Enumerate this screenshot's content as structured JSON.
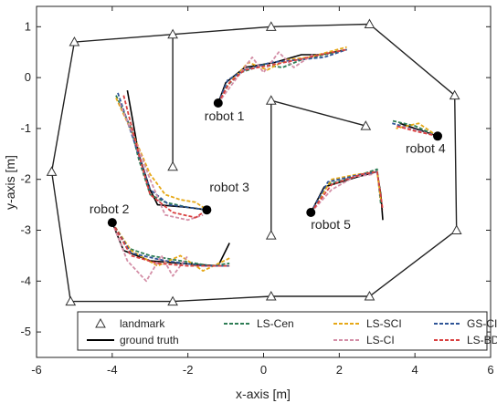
{
  "chart_data": {
    "type": "line",
    "title": "",
    "xlabel": "x-axis [m]",
    "ylabel": "y-axis [m]",
    "xlim": [
      -6,
      6
    ],
    "ylim": [
      -5.5,
      1.4
    ],
    "xticks": [
      -6,
      -4,
      -2,
      0,
      2,
      4,
      6
    ],
    "yticks": [
      1,
      0,
      -1,
      -2,
      -3,
      -4,
      -5
    ],
    "xtick_labels": [
      "-6",
      "-4",
      "-2",
      "0",
      "2",
      "4",
      "6"
    ],
    "ytick_labels": [
      "1",
      "0",
      "-1",
      "-2",
      "-3",
      "-4",
      "-5"
    ],
    "grid": false,
    "legend_position": "bottom-center",
    "landmarks": {
      "name": "landmark",
      "color": "#333333",
      "boundary": [
        [
          -5.1,
          -4.4
        ],
        [
          -2.4,
          -4.4
        ],
        [
          0.2,
          -4.3
        ],
        [
          2.8,
          -4.3
        ],
        [
          5.1,
          -3.0
        ],
        [
          5.05,
          -0.35
        ],
        [
          2.8,
          1.05
        ],
        [
          0.2,
          1.0
        ],
        [
          -2.4,
          0.85
        ],
        [
          -5.0,
          0.7
        ],
        [
          -5.6,
          -1.85
        ],
        [
          -5.1,
          -4.4
        ]
      ],
      "segments": [
        [
          [
            -2.4,
            0.85
          ],
          [
            -2.4,
            -1.75
          ]
        ],
        [
          [
            0.2,
            -0.45
          ],
          [
            0.2,
            -3.1
          ]
        ],
        [
          [
            0.2,
            -0.45
          ],
          [
            2.7,
            -0.95
          ]
        ]
      ]
    },
    "robots": [
      {
        "label": "robot 1",
        "end": [
          -1.2,
          -0.5
        ]
      },
      {
        "label": "robot 2",
        "end": [
          -4.0,
          -2.85
        ]
      },
      {
        "label": "robot 3",
        "end": [
          -1.5,
          -2.6
        ]
      },
      {
        "label": "robot 4",
        "end": [
          4.6,
          -1.15
        ]
      },
      {
        "label": "robot 5",
        "end": [
          1.25,
          -2.65
        ]
      }
    ],
    "series": [
      {
        "name": "ground truth",
        "color": "#000000",
        "dash": "solid",
        "paths": [
          [
            [
              -1.2,
              -0.5
            ],
            [
              -1.0,
              -0.1
            ],
            [
              -0.5,
              0.2
            ],
            [
              0.3,
              0.3
            ],
            [
              1.0,
              0.45
            ],
            [
              1.5,
              0.45
            ],
            [
              2.2,
              0.55
            ]
          ],
          [
            [
              -3.6,
              -0.25
            ],
            [
              -3.3,
              -1.5
            ],
            [
              -3.0,
              -2.2
            ],
            [
              -2.8,
              -2.5
            ],
            [
              -2.0,
              -2.55
            ],
            [
              -1.5,
              -2.6
            ]
          ],
          [
            [
              -4.0,
              -2.85
            ],
            [
              -3.7,
              -3.4
            ],
            [
              -3.0,
              -3.6
            ],
            [
              -2.2,
              -3.65
            ],
            [
              -1.2,
              -3.7
            ],
            [
              -0.9,
              -3.25
            ]
          ],
          [
            [
              1.25,
              -2.65
            ],
            [
              1.6,
              -2.15
            ],
            [
              2.5,
              -1.95
            ],
            [
              3.0,
              -1.85
            ],
            [
              3.1,
              -2.3
            ],
            [
              3.15,
              -2.8
            ]
          ],
          [
            [
              4.6,
              -1.15
            ],
            [
              4.0,
              -1.0
            ],
            [
              3.6,
              -0.9
            ]
          ]
        ]
      },
      {
        "name": "LS-Cen",
        "color": "#2e7d55",
        "dash": "dashed",
        "paths": [
          [
            [
              -1.2,
              -0.5
            ],
            [
              -0.95,
              -0.15
            ],
            [
              -0.6,
              0.1
            ],
            [
              0.0,
              0.25
            ],
            [
              0.5,
              0.2
            ],
            [
              1.0,
              0.35
            ],
            [
              1.6,
              0.45
            ],
            [
              2.2,
              0.55
            ]
          ],
          [
            [
              -3.9,
              -0.35
            ],
            [
              -3.5,
              -1.0
            ],
            [
              -3.3,
              -1.6
            ],
            [
              -3.0,
              -2.3
            ],
            [
              -2.6,
              -2.45
            ],
            [
              -2.0,
              -2.55
            ],
            [
              -1.5,
              -2.6
            ]
          ],
          [
            [
              -4.0,
              -2.85
            ],
            [
              -3.6,
              -3.35
            ],
            [
              -3.0,
              -3.5
            ],
            [
              -2.2,
              -3.6
            ],
            [
              -1.4,
              -3.7
            ],
            [
              -0.9,
              -3.65
            ]
          ],
          [
            [
              1.25,
              -2.65
            ],
            [
              1.7,
              -2.1
            ],
            [
              2.4,
              -1.95
            ],
            [
              3.0,
              -1.8
            ],
            [
              3.1,
              -2.5
            ]
          ],
          [
            [
              4.6,
              -1.15
            ],
            [
              4.0,
              -0.95
            ],
            [
              3.4,
              -0.85
            ]
          ]
        ]
      },
      {
        "name": "LS-SCI",
        "color": "#e6a817",
        "dash": "dashed",
        "paths": [
          [
            [
              -1.2,
              -0.5
            ],
            [
              -0.9,
              -0.1
            ],
            [
              -0.4,
              0.3
            ],
            [
              0.1,
              0.15
            ],
            [
              0.6,
              0.35
            ],
            [
              1.2,
              0.4
            ],
            [
              2.2,
              0.6
            ]
          ],
          [
            [
              -3.9,
              -0.4
            ],
            [
              -3.4,
              -1.2
            ],
            [
              -3.0,
              -1.9
            ],
            [
              -2.6,
              -2.3
            ],
            [
              -2.2,
              -2.4
            ],
            [
              -1.8,
              -2.45
            ],
            [
              -1.5,
              -2.6
            ]
          ],
          [
            [
              -4.0,
              -2.85
            ],
            [
              -3.5,
              -3.4
            ],
            [
              -2.8,
              -3.7
            ],
            [
              -2.2,
              -3.5
            ],
            [
              -1.6,
              -3.8
            ],
            [
              -0.9,
              -3.55
            ]
          ],
          [
            [
              1.25,
              -2.65
            ],
            [
              1.8,
              -2.0
            ],
            [
              2.5,
              -1.9
            ],
            [
              3.0,
              -1.85
            ],
            [
              3.1,
              -2.4
            ]
          ],
          [
            [
              4.6,
              -1.15
            ],
            [
              4.1,
              -0.9
            ],
            [
              3.5,
              -1.0
            ]
          ]
        ]
      },
      {
        "name": "GS-CI",
        "color": "#2f5597",
        "dash": "dashed",
        "paths": [
          [
            [
              -1.2,
              -0.5
            ],
            [
              -0.95,
              -0.05
            ],
            [
              -0.5,
              0.15
            ],
            [
              0.2,
              0.3
            ],
            [
              0.9,
              0.35
            ],
            [
              1.6,
              0.4
            ],
            [
              2.2,
              0.55
            ]
          ],
          [
            [
              -3.85,
              -0.3
            ],
            [
              -3.4,
              -1.3
            ],
            [
              -3.0,
              -2.2
            ],
            [
              -2.5,
              -2.5
            ],
            [
              -1.5,
              -2.6
            ]
          ],
          [
            [
              -4.0,
              -2.85
            ],
            [
              -3.5,
              -3.45
            ],
            [
              -2.6,
              -3.6
            ],
            [
              -1.6,
              -3.7
            ],
            [
              -0.9,
              -3.7
            ]
          ],
          [
            [
              1.25,
              -2.65
            ],
            [
              1.7,
              -2.05
            ],
            [
              2.6,
              -1.9
            ],
            [
              3.0,
              -1.85
            ]
          ],
          [
            [
              4.6,
              -1.15
            ],
            [
              3.9,
              -1.0
            ],
            [
              3.4,
              -0.9
            ]
          ]
        ]
      },
      {
        "name": "LS-CI",
        "color": "#d48fa7",
        "dash": "dashed",
        "paths": [
          [
            [
              -1.2,
              -0.5
            ],
            [
              -0.7,
              0.0
            ],
            [
              -0.3,
              0.4
            ],
            [
              0.0,
              0.1
            ],
            [
              0.4,
              0.5
            ],
            [
              0.8,
              0.2
            ],
            [
              1.3,
              0.45
            ]
          ],
          [
            [
              -3.8,
              -0.5
            ],
            [
              -3.3,
              -1.4
            ],
            [
              -3.0,
              -2.0
            ],
            [
              -2.6,
              -2.7
            ],
            [
              -2.0,
              -2.8
            ],
            [
              -1.6,
              -2.7
            ]
          ],
          [
            [
              -4.0,
              -2.85
            ],
            [
              -3.6,
              -3.6
            ],
            [
              -3.1,
              -4.0
            ],
            [
              -2.7,
              -3.5
            ],
            [
              -2.4,
              -3.9
            ],
            [
              -2.0,
              -3.5
            ]
          ],
          [
            [
              1.25,
              -2.65
            ],
            [
              1.8,
              -2.2
            ],
            [
              2.4,
              -1.95
            ],
            [
              2.9,
              -1.9
            ]
          ],
          [
            [
              4.6,
              -1.15
            ],
            [
              4.1,
              -1.05
            ],
            [
              3.6,
              -0.95
            ]
          ]
        ]
      },
      {
        "name": "LS-BDA",
        "color": "#d94040",
        "dash": "dashed",
        "paths": [
          [
            [
              -1.2,
              -0.5
            ],
            [
              -0.9,
              -0.1
            ],
            [
              -0.5,
              0.15
            ],
            [
              0.2,
              0.25
            ],
            [
              0.9,
              0.35
            ],
            [
              1.5,
              0.45
            ],
            [
              2.2,
              0.55
            ]
          ],
          [
            [
              -3.7,
              -0.35
            ],
            [
              -3.3,
              -1.5
            ],
            [
              -3.0,
              -2.3
            ],
            [
              -2.4,
              -2.65
            ],
            [
              -1.8,
              -2.75
            ],
            [
              -1.5,
              -2.6
            ]
          ],
          [
            [
              -4.0,
              -2.85
            ],
            [
              -3.5,
              -3.5
            ],
            [
              -2.8,
              -3.65
            ],
            [
              -2.0,
              -3.7
            ],
            [
              -0.9,
              -3.7
            ]
          ],
          [
            [
              1.25,
              -2.65
            ],
            [
              1.8,
              -2.1
            ],
            [
              2.6,
              -1.9
            ],
            [
              3.0,
              -1.85
            ],
            [
              3.15,
              -2.6
            ]
          ],
          [
            [
              4.6,
              -1.15
            ],
            [
              4.0,
              -1.05
            ],
            [
              3.5,
              -0.95
            ]
          ]
        ]
      }
    ],
    "legend": [
      {
        "key": "landmark",
        "label": "landmark",
        "symbol": "triangle",
        "color": "#333333"
      },
      {
        "key": "LS-Cen",
        "label": "LS-Cen",
        "symbol": "dashed",
        "color": "#2e7d55"
      },
      {
        "key": "LS-SCI",
        "label": "LS-SCI",
        "symbol": "dashed",
        "color": "#e6a817"
      },
      {
        "key": "GS-CI",
        "label": "GS-CI",
        "symbol": "dashed",
        "color": "#2f5597"
      },
      {
        "key": "ground truth",
        "label": "ground truth",
        "symbol": "solid",
        "color": "#000000"
      },
      {
        "key": "LS-CI",
        "label": "LS-CI",
        "symbol": "dashed",
        "color": "#d48fa7"
      },
      {
        "key": "LS-BDA",
        "label": "LS-BDA",
        "symbol": "dashed",
        "color": "#d94040"
      }
    ]
  }
}
